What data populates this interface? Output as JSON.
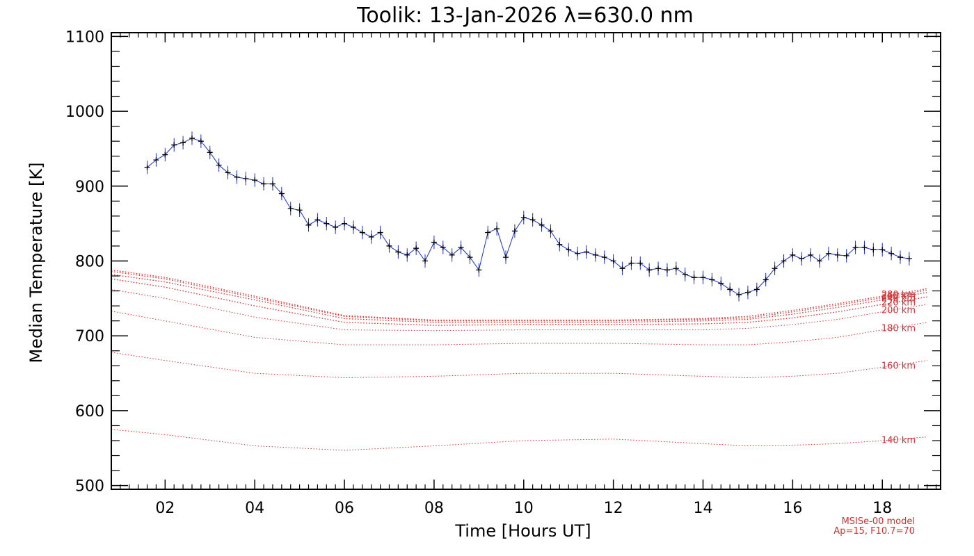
{
  "chart_data": {
    "type": "line",
    "title": "Toolik: 13-Jan-2026 λ=630.0 nm",
    "xlabel": "Time [Hours UT]",
    "ylabel": "Median Temperature [K]",
    "xlim": [
      0.8,
      19.3
    ],
    "ylim": [
      495,
      1105
    ],
    "x_ticks": [
      2,
      4,
      6,
      8,
      10,
      12,
      14,
      16,
      18
    ],
    "x_tick_labels": [
      "02",
      "04",
      "06",
      "08",
      "10",
      "12",
      "14",
      "16",
      "18"
    ],
    "y_ticks": [
      500,
      600,
      700,
      800,
      900,
      1000,
      1100
    ],
    "y_tick_labels": [
      "500",
      "600",
      "700",
      "800",
      "900",
      "1000",
      "1100"
    ],
    "colors": {
      "measured": "#000000",
      "errorbars": "#1a2fd0",
      "model": "#e03030"
    },
    "measured": {
      "x": [
        1.6,
        1.8,
        2.0,
        2.2,
        2.4,
        2.6,
        2.8,
        3.0,
        3.2,
        3.4,
        3.6,
        3.8,
        4.0,
        4.2,
        4.4,
        4.6,
        4.8,
        5.0,
        5.2,
        5.4,
        5.6,
        5.8,
        6.0,
        6.2,
        6.4,
        6.6,
        6.8,
        7.0,
        7.2,
        7.4,
        7.6,
        7.8,
        8.0,
        8.2,
        8.4,
        8.6,
        8.8,
        9.0,
        9.2,
        9.4,
        9.6,
        9.8,
        10.0,
        10.2,
        10.4,
        10.6,
        10.8,
        11.0,
        11.2,
        11.4,
        11.6,
        11.8,
        12.0,
        12.2,
        12.4,
        12.6,
        12.8,
        13.0,
        13.2,
        13.4,
        13.6,
        13.8,
        14.0,
        14.2,
        14.4,
        14.6,
        14.8,
        15.0,
        15.2,
        15.4,
        15.6,
        15.8,
        16.0,
        16.2,
        16.4,
        16.6,
        16.8,
        17.0,
        17.2,
        17.4,
        17.6,
        17.8,
        18.0,
        18.2,
        18.4,
        18.6
      ],
      "y": [
        925,
        935,
        942,
        955,
        958,
        964,
        960,
        945,
        928,
        918,
        912,
        910,
        908,
        903,
        903,
        890,
        870,
        868,
        848,
        855,
        850,
        845,
        850,
        845,
        838,
        832,
        838,
        820,
        812,
        808,
        817,
        800,
        825,
        818,
        808,
        818,
        805,
        788,
        838,
        843,
        805,
        840,
        858,
        855,
        848,
        840,
        822,
        815,
        810,
        812,
        808,
        805,
        800,
        790,
        797,
        797,
        788,
        790,
        788,
        790,
        782,
        778,
        778,
        775,
        770,
        762,
        755,
        758,
        762,
        775,
        790,
        800,
        808,
        803,
        808,
        800,
        810,
        808,
        807,
        818,
        818,
        815,
        815,
        810,
        805,
        803
      ],
      "error": 9
    },
    "model": {
      "source": "MSISe-00 model",
      "params": "Ap=15, F10.7=70",
      "x": [
        0.8,
        2.0,
        4.0,
        6.0,
        8.0,
        10.0,
        12.0,
        14.0,
        15.0,
        16.0,
        17.0,
        18.0,
        19.0
      ],
      "series": [
        {
          "name": "140 km",
          "y": [
            575,
            568,
            553,
            547,
            553,
            560,
            562,
            556,
            553,
            554,
            556,
            560,
            565
          ]
        },
        {
          "name": "160 km",
          "y": [
            678,
            667,
            650,
            644,
            646,
            650,
            650,
            646,
            644,
            646,
            650,
            658,
            667
          ]
        },
        {
          "name": "180 km",
          "y": [
            733,
            720,
            698,
            688,
            688,
            690,
            690,
            688,
            688,
            692,
            698,
            708,
            718
          ]
        },
        {
          "name": "200 km",
          "y": [
            762,
            750,
            725,
            708,
            707,
            708,
            708,
            708,
            710,
            715,
            722,
            732,
            742
          ]
        },
        {
          "name": "220 km",
          "y": [
            776,
            765,
            740,
            718,
            714,
            715,
            715,
            716,
            718,
            724,
            732,
            742,
            752
          ]
        },
        {
          "name": "240 km",
          "y": [
            782,
            772,
            748,
            723,
            718,
            718,
            718,
            720,
            722,
            729,
            738,
            748,
            758
          ]
        },
        {
          "name": "260 km",
          "y": [
            786,
            776,
            751,
            726,
            720,
            720,
            720,
            722,
            724,
            732,
            741,
            751,
            761
          ]
        },
        {
          "name": "280 km",
          "y": [
            788,
            778,
            753,
            727,
            721,
            721,
            721,
            723,
            726,
            734,
            743,
            753,
            763
          ]
        }
      ]
    }
  }
}
